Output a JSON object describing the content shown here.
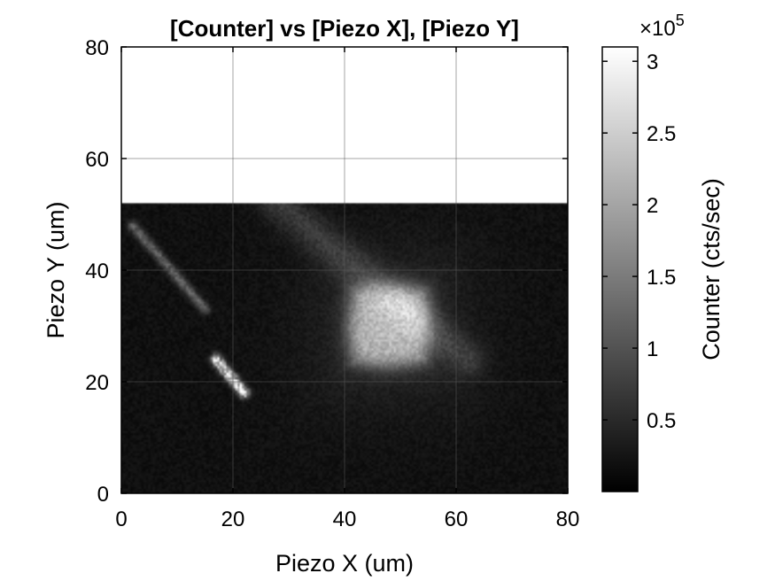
{
  "chart_data": {
    "type": "heatmap",
    "title": "[Counter] vs [Piezo X], [Piezo Y]",
    "xlabel": "Piezo X (um)",
    "ylabel": "Piezo Y (um)",
    "xlim": [
      0,
      80
    ],
    "ylim": [
      0,
      80
    ],
    "xticks": [
      "0",
      "20",
      "40",
      "60",
      "80"
    ],
    "yticks": [
      "0",
      "20",
      "40",
      "60",
      "80"
    ],
    "grid": true,
    "colormap": "gray",
    "scanned_y_range": [
      0,
      52
    ],
    "unscanned_region": {
      "y_range": [
        52,
        80
      ],
      "color": "#ffffff"
    },
    "background_counts": 20000,
    "features": [
      {
        "kind": "bright-blob",
        "x": 48,
        "y": 30,
        "peak_counts": 175000
      },
      {
        "kind": "bright-streak",
        "x": [
          17,
          22
        ],
        "y": [
          24,
          18
        ],
        "peak_counts": 310000
      },
      {
        "kind": "faint-streak",
        "x": [
          2,
          15
        ],
        "y": [
          48,
          33
        ],
        "peak_counts": 110000
      },
      {
        "kind": "faint-band",
        "x": [
          28,
          62
        ],
        "y": [
          52,
          24
        ],
        "peak_counts": 55000
      }
    ],
    "colorbar": {
      "label": "Counter (cts/sec)",
      "range": [
        0,
        310000
      ],
      "ticks": [
        "0.5",
        "1",
        "1.5",
        "2",
        "2.5",
        "3"
      ],
      "tick_values": [
        50000,
        100000,
        150000,
        200000,
        250000,
        300000
      ],
      "multiplier_prefix": "×10",
      "multiplier_exponent": "5"
    }
  },
  "colors": {
    "background": "#ffffff",
    "grid": "#5a5a5a",
    "axis": "#000000"
  }
}
